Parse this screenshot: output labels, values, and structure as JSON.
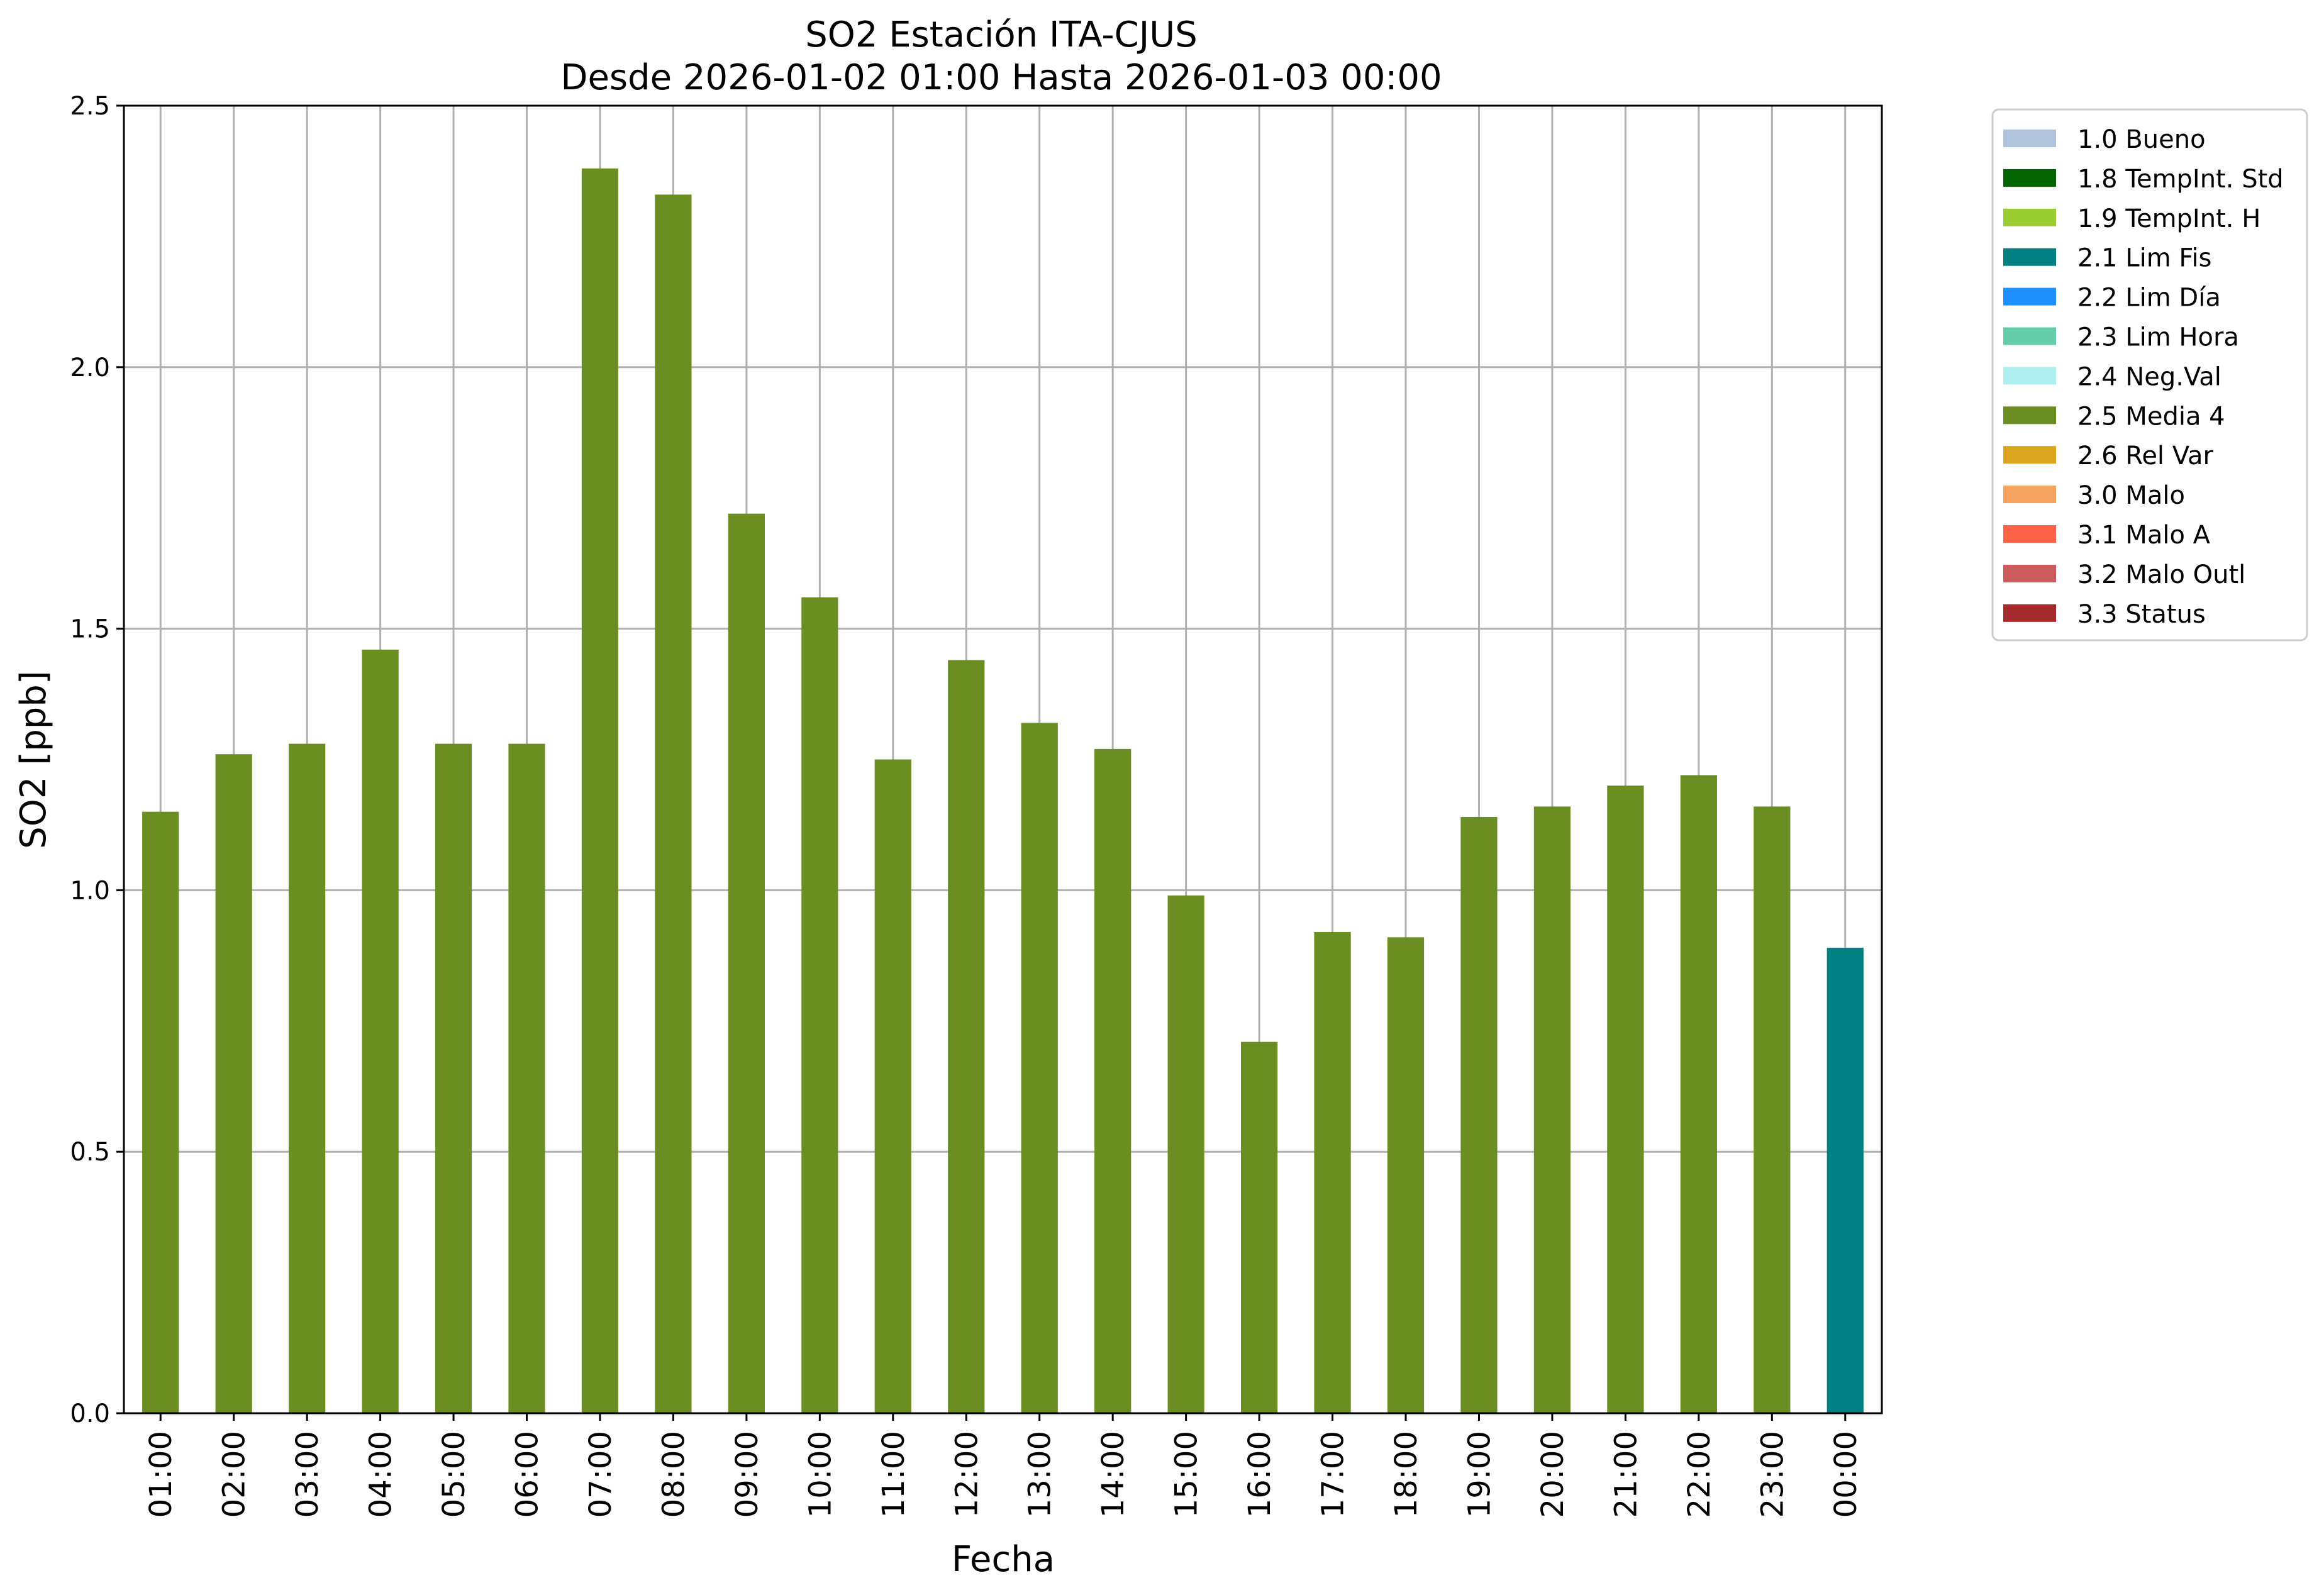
{
  "chart_data": {
    "type": "bar",
    "title_line1": "SO2 Estación ITA-CJUS",
    "title_line2": "Desde 2026-01-02 01:00 Hasta 2026-01-03 00:00",
    "xlabel": "Fecha",
    "ylabel": "SO2 [ppb]",
    "ylim": [
      0,
      2.5
    ],
    "yticks": [
      "0.0",
      "0.5",
      "1.0",
      "1.5",
      "2.0",
      "2.5"
    ],
    "grid": true,
    "legend_position": "outside-top-right",
    "categories": [
      "01:00",
      "02:00",
      "03:00",
      "04:00",
      "05:00",
      "06:00",
      "07:00",
      "08:00",
      "09:00",
      "10:00",
      "11:00",
      "12:00",
      "13:00",
      "14:00",
      "15:00",
      "16:00",
      "17:00",
      "18:00",
      "19:00",
      "20:00",
      "21:00",
      "22:00",
      "23:00",
      "00:00"
    ],
    "values": [
      1.15,
      1.26,
      1.28,
      1.46,
      1.28,
      1.28,
      2.38,
      2.33,
      1.72,
      1.56,
      1.25,
      1.44,
      1.32,
      1.27,
      0.99,
      0.71,
      0.92,
      0.91,
      1.14,
      1.16,
      1.2,
      1.22,
      1.16,
      0.89
    ],
    "flags": [
      "2.5 Media 4",
      "2.5 Media 4",
      "2.5 Media 4",
      "2.5 Media 4",
      "2.5 Media 4",
      "2.5 Media 4",
      "2.5 Media 4",
      "2.5 Media 4",
      "2.5 Media 4",
      "2.5 Media 4",
      "2.5 Media 4",
      "2.5 Media 4",
      "2.5 Media 4",
      "2.5 Media 4",
      "2.5 Media 4",
      "2.5 Media 4",
      "2.5 Media 4",
      "2.5 Media 4",
      "2.5 Media 4",
      "2.5 Media 4",
      "2.5 Media 4",
      "2.5 Media 4",
      "2.5 Media 4",
      "2.1 Lim Fis"
    ],
    "legend": [
      {
        "label": "1.0 Bueno",
        "color": "#b0c4de"
      },
      {
        "label": "1.8 TempInt. Std",
        "color": "#006400"
      },
      {
        "label": "1.9 TempInt. H",
        "color": "#9acd32"
      },
      {
        "label": "2.1 Lim Fis",
        "color": "#008080"
      },
      {
        "label": "2.2 Lim Día",
        "color": "#1e90ff"
      },
      {
        "label": "2.3 Lim Hora",
        "color": "#66cdaa"
      },
      {
        "label": "2.4 Neg.Val",
        "color": "#afeeee"
      },
      {
        "label": "2.5 Media 4",
        "color": "#6b8e23"
      },
      {
        "label": "2.6 Rel Var",
        "color": "#daa520"
      },
      {
        "label": "3.0 Malo",
        "color": "#f4a460"
      },
      {
        "label": "3.1 Malo A",
        "color": "#ff6347"
      },
      {
        "label": "3.2 Malo Outl",
        "color": "#cd5c5c"
      },
      {
        "label": "3.3 Status",
        "color": "#a52a2a"
      }
    ]
  }
}
